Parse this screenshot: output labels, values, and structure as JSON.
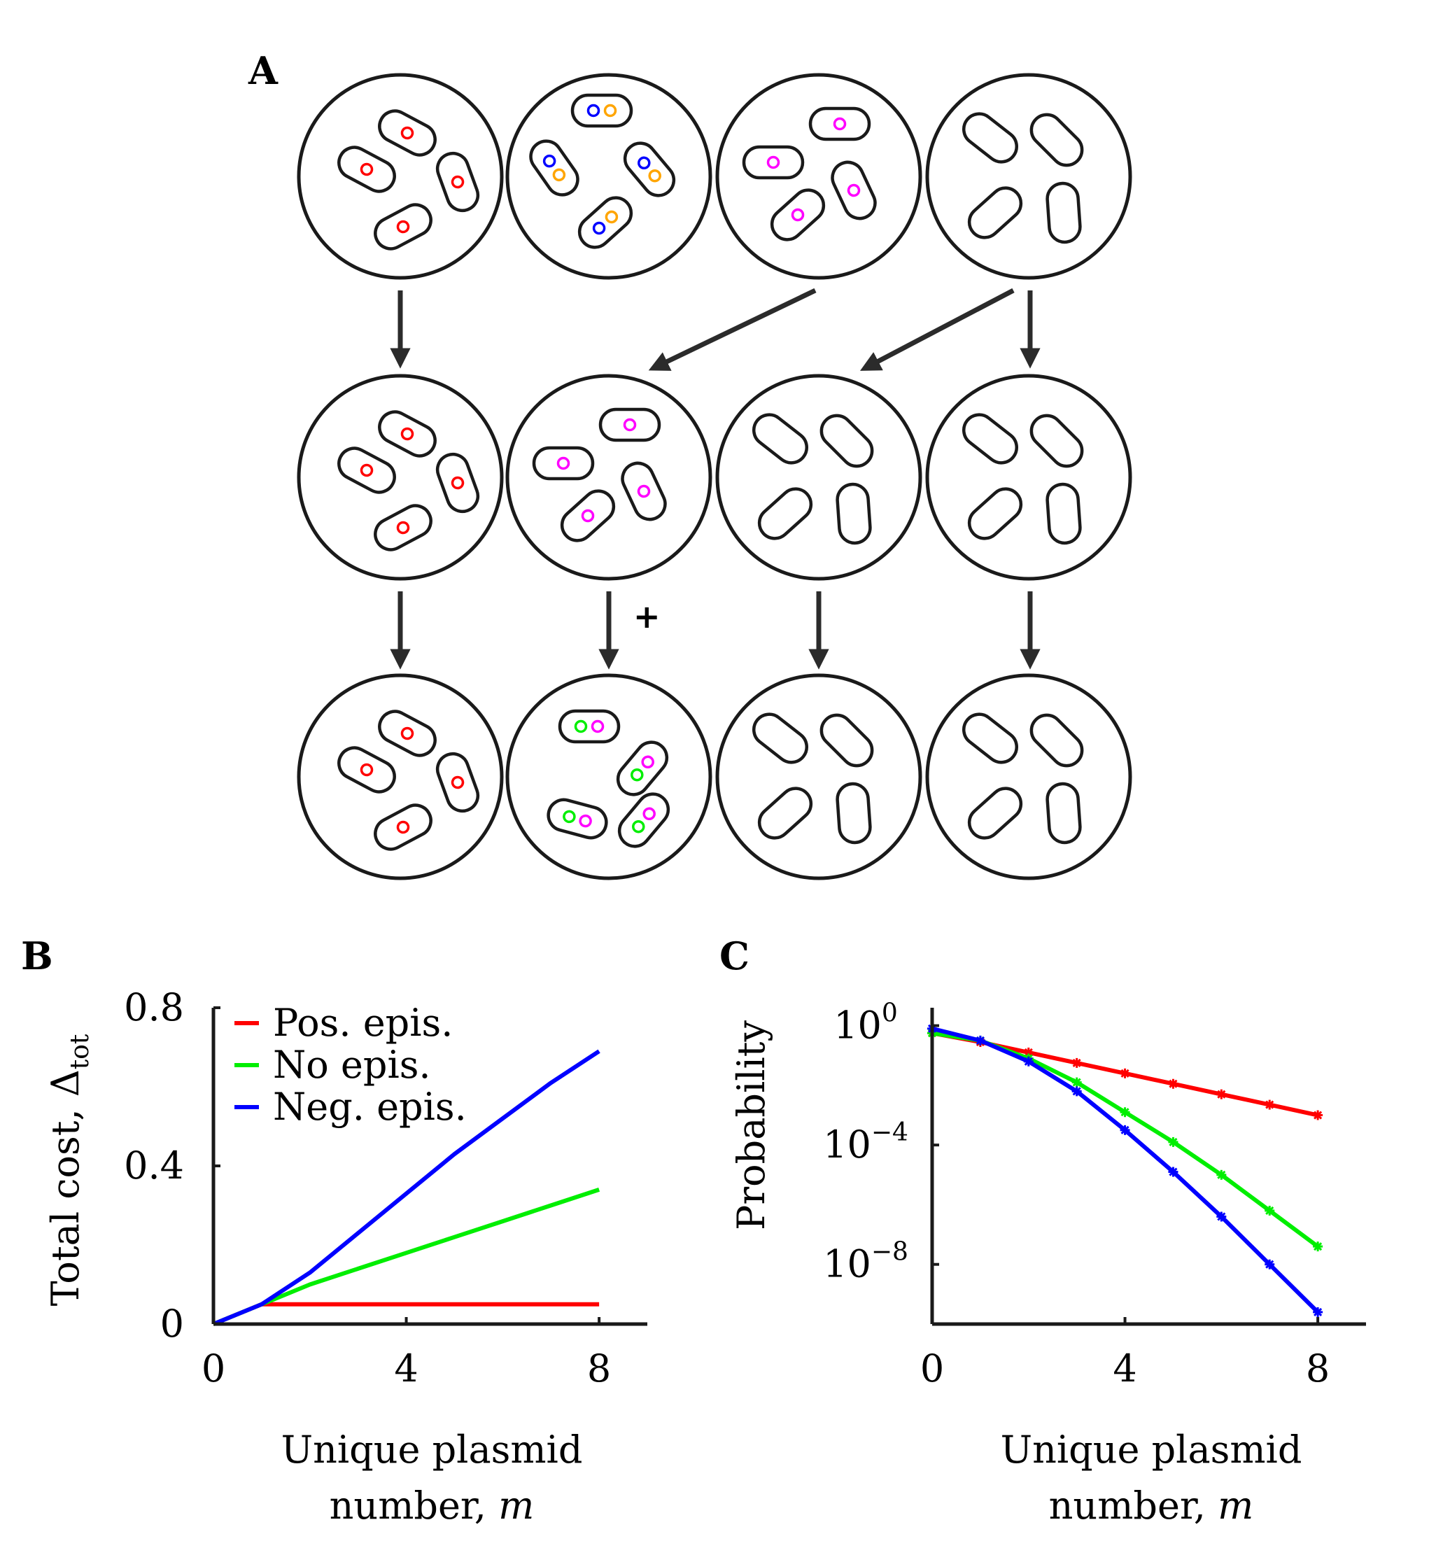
{
  "panel_labels": {
    "a": "A",
    "b": "B",
    "c": "C"
  },
  "colors": {
    "outline": "#1a1a1a",
    "arrow": "#2b2b2b",
    "red": "#ff0000",
    "green": "#00ee00",
    "blue": "#0000ff",
    "magenta": "#ff00ff",
    "orange": "#ffa500"
  },
  "diagram": {
    "plus_label": "+",
    "rows": [
      [
        {
          "plasmids": [
            [
              "red"
            ],
            [
              "red"
            ],
            [
              "red"
            ],
            [
              "red"
            ]
          ]
        },
        {
          "plasmids": [
            [
              "blue",
              "orange"
            ],
            [
              "blue",
              "orange"
            ],
            [
              "blue",
              "orange"
            ],
            [
              "blue",
              "orange"
            ]
          ]
        },
        {
          "plasmids": [
            [
              "magenta"
            ],
            [
              "magenta"
            ],
            [
              "magenta"
            ],
            [
              "magenta"
            ]
          ]
        },
        {
          "plasmids": [
            [],
            [],
            [],
            []
          ]
        }
      ],
      [
        {
          "plasmids": [
            [
              "red"
            ],
            [
              "red"
            ],
            [
              "red"
            ],
            [
              "red"
            ]
          ]
        },
        {
          "plasmids": [
            [
              "magenta"
            ],
            [
              "magenta"
            ],
            [
              "magenta"
            ],
            [
              "magenta"
            ]
          ]
        },
        {
          "plasmids": [
            [],
            [],
            [],
            []
          ]
        },
        {
          "plasmids": [
            [],
            [],
            [],
            []
          ]
        }
      ],
      [
        {
          "plasmids": [
            [
              "red"
            ],
            [
              "red"
            ],
            [
              "red"
            ],
            [
              "red"
            ]
          ]
        },
        {
          "plasmids": [
            [
              "green",
              "magenta"
            ],
            [
              "green",
              "magenta"
            ],
            [
              "green",
              "magenta"
            ],
            [
              "green",
              "magenta"
            ]
          ]
        },
        {
          "plasmids": [
            [],
            [],
            [],
            []
          ]
        },
        {
          "plasmids": [
            [],
            [],
            [],
            []
          ]
        }
      ]
    ]
  },
  "chart_data": [
    {
      "type": "line",
      "panel": "B",
      "ylabel": "Total cost, Δ",
      "ylabel_subscript": "tot",
      "xlabel_line1": "Unique plasmid",
      "xlabel_line2": "number, ",
      "xlabel_var": "m",
      "x": [
        0,
        1,
        2,
        3,
        4,
        5,
        6,
        7,
        8
      ],
      "xlim": [
        0,
        9
      ],
      "ylim": [
        0,
        0.8
      ],
      "xticks": [
        "0",
        "4",
        "8"
      ],
      "yticks": [
        "0",
        "0.4",
        "0.8"
      ],
      "xtick_values": [
        0,
        4,
        8
      ],
      "ytick_values": [
        0,
        0.4,
        0.8
      ],
      "legend_position": "top-left",
      "series": [
        {
          "name": "Pos. epis.",
          "color": "red",
          "values": [
            0,
            0.05,
            0.05,
            0.05,
            0.05,
            0.05,
            0.05,
            0.05,
            0.05
          ]
        },
        {
          "name": "No epis.",
          "color": "green",
          "values": [
            0,
            0.05,
            0.1,
            0.14,
            0.18,
            0.22,
            0.26,
            0.3,
            0.34
          ]
        },
        {
          "name": "Neg. epis.",
          "color": "blue",
          "values": [
            0,
            0.05,
            0.13,
            0.23,
            0.33,
            0.43,
            0.52,
            0.61,
            0.69
          ]
        }
      ]
    },
    {
      "type": "line",
      "panel": "C",
      "yscale": "log",
      "ylabel": "Probability",
      "xlabel_line1": "Unique plasmid",
      "xlabel_line2": "number, ",
      "xlabel_var": "m",
      "x": [
        0,
        1,
        2,
        3,
        4,
        5,
        6,
        7,
        8
      ],
      "xlim": [
        0,
        9
      ],
      "ylim_log10": [
        -10,
        0.6
      ],
      "xticks": [
        "0",
        "4",
        "8"
      ],
      "xtick_values": [
        0,
        4,
        8
      ],
      "ytick_base": "10",
      "ytick_exponents": [
        "0",
        "−4",
        "−8"
      ],
      "ytick_log10": [
        0,
        -4,
        -8
      ],
      "grid": false,
      "series": [
        {
          "color": "red",
          "log10_values": [
            -0.25,
            -0.55,
            -0.9,
            -1.25,
            -1.6,
            -1.95,
            -2.3,
            -2.65,
            -3.0
          ]
        },
        {
          "color": "green",
          "log10_values": [
            -0.25,
            -0.5,
            -1.1,
            -1.9,
            -2.9,
            -3.9,
            -5.0,
            -6.2,
            -7.4
          ]
        },
        {
          "color": "blue",
          "log10_values": [
            -0.1,
            -0.5,
            -1.2,
            -2.2,
            -3.5,
            -4.9,
            -6.4,
            -8.0,
            -9.6
          ]
        }
      ]
    }
  ]
}
